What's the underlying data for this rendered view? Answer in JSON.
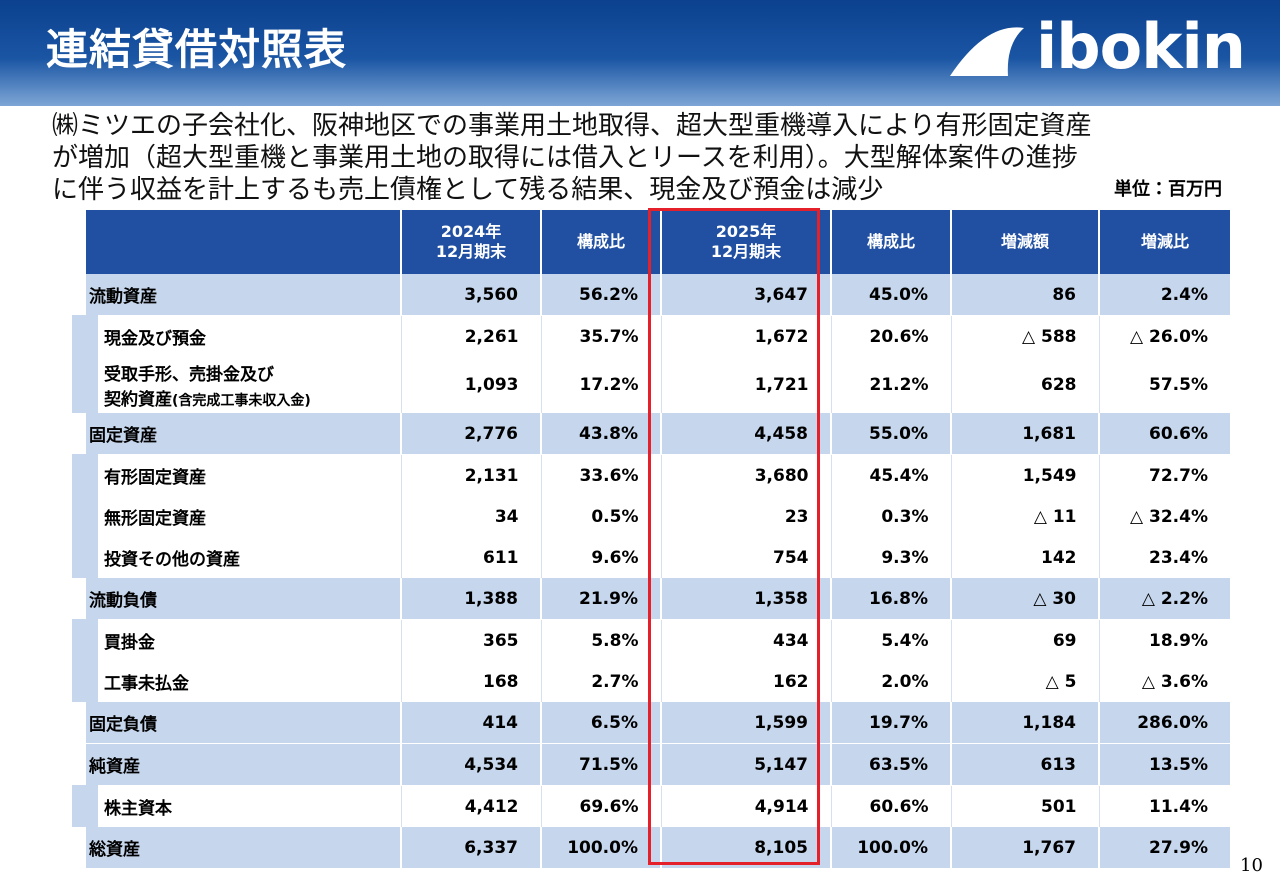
{
  "header": {
    "title": "連結貸借対照表",
    "logo": "ibokin"
  },
  "description": [
    "㈱ミツエの子会社化、阪神地区での事業用土地取得、超大型重機導入により有形固定資産",
    "が増加（超大型重機と事業用土地の取得には借入とリースを利用）。大型解体案件の進捗",
    "に伴う収益を計上するも売上債権として残る結果、現金及び預金は減少"
  ],
  "unit": "単位：百万円",
  "table": {
    "columns": [
      [
        "2024年",
        "12月期末"
      ],
      [
        "構成比"
      ],
      [
        "2025年",
        "12月期末"
      ],
      [
        "構成比"
      ],
      [
        "増減額"
      ],
      [
        "増減比"
      ]
    ],
    "sections": [
      {
        "label": "流動資産",
        "values": [
          "3,560",
          "56.2%",
          "3,647",
          "45.0%",
          "86",
          "2.4%"
        ],
        "children": [
          {
            "label": "現金及び預金",
            "values": [
              "2,261",
              "35.7%",
              "1,672",
              "20.6%",
              "△ 588",
              "△ 26.0%"
            ]
          },
          {
            "label": "受取手形、売掛金及び",
            "label2": "契約資産",
            "note": "(含完成工事未収入金)",
            "values": [
              "1,093",
              "17.2%",
              "1,721",
              "21.2%",
              "628",
              "57.5%"
            ]
          }
        ]
      },
      {
        "label": "固定資産",
        "values": [
          "2,776",
          "43.8%",
          "4,458",
          "55.0%",
          "1,681",
          "60.6%"
        ],
        "children": [
          {
            "label": "有形固定資産",
            "values": [
              "2,131",
              "33.6%",
              "3,680",
              "45.4%",
              "1,549",
              "72.7%"
            ]
          },
          {
            "label": "無形固定資産",
            "values": [
              "34",
              "0.5%",
              "23",
              "0.3%",
              "△ 11",
              "△ 32.4%"
            ]
          },
          {
            "label": "投資その他の資産",
            "values": [
              "611",
              "9.6%",
              "754",
              "9.3%",
              "142",
              "23.4%"
            ]
          }
        ]
      },
      {
        "label": "流動負債",
        "values": [
          "1,388",
          "21.9%",
          "1,358",
          "16.8%",
          "△ 30",
          "△ 2.2%"
        ],
        "children": [
          {
            "label": "買掛金",
            "values": [
              "365",
              "5.8%",
              "434",
              "5.4%",
              "69",
              "18.9%"
            ]
          },
          {
            "label": "工事未払金",
            "values": [
              "168",
              "2.7%",
              "162",
              "2.0%",
              "△ 5",
              "△ 3.6%"
            ]
          }
        ]
      },
      {
        "label": "固定負債",
        "values": [
          "414",
          "6.5%",
          "1,599",
          "19.7%",
          "1,184",
          "286.0%"
        ],
        "children": []
      },
      {
        "label": "純資産",
        "values": [
          "4,534",
          "71.5%",
          "5,147",
          "63.5%",
          "613",
          "13.5%"
        ],
        "children": [
          {
            "label": "株主資本",
            "values": [
              "4,412",
              "69.6%",
              "4,914",
              "60.6%",
              "501",
              "11.4%"
            ]
          }
        ]
      },
      {
        "label": "総資産",
        "values": [
          "6,337",
          "100.0%",
          "8,105",
          "100.0%",
          "1,767",
          "27.9%"
        ],
        "children": []
      }
    ]
  },
  "page_number": "10"
}
